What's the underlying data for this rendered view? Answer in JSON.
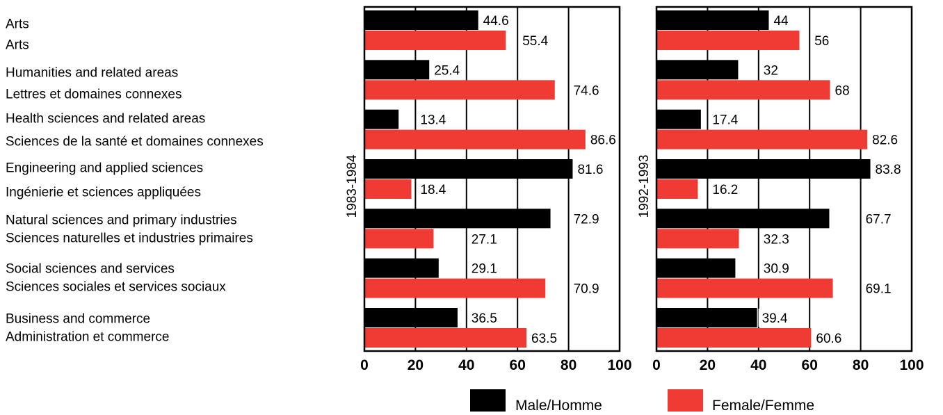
{
  "chart_data": {
    "type": "bar",
    "orientation": "horizontal",
    "categories": [
      [
        "Arts",
        "Arts"
      ],
      [
        "Humanities and related areas",
        "Lettres et domaines connexes"
      ],
      [
        "Health sciences and related areas",
        "Sciences de la santé et domaines connexes"
      ],
      [
        "Engineering and applied sciences",
        "Ingénierie et sciences appliquées"
      ],
      [
        "Natural sciences and primary industries",
        "Sciences naturelles et industries primaires"
      ],
      [
        "Social sciences and services",
        "Sciences sociales et services sociaux"
      ],
      [
        "Business and commerce",
        "Administration et commerce"
      ]
    ],
    "legend": [
      {
        "name": "Male/Homme",
        "color": "#000000"
      },
      {
        "name": "Female/Femme",
        "color": "#ef3b33"
      }
    ],
    "xlim": [
      0,
      100
    ],
    "xticks": [
      "0",
      "20",
      "40",
      "60",
      "80",
      "100"
    ],
    "grid": "vertical",
    "legend_position": "bottom",
    "panels": [
      {
        "label": "1983-1984",
        "series": [
          {
            "name": "Male/Homme",
            "values": [
              44.6,
              25.4,
              13.4,
              81.6,
              72.9,
              29.1,
              36.5
            ],
            "labels": [
              "44.6",
              "25.4",
              "13.4",
              "81.6",
              "72.9",
              "29.1",
              "36.5"
            ]
          },
          {
            "name": "Female/Femme",
            "values": [
              55.4,
              74.6,
              86.6,
              18.4,
              27.1,
              70.9,
              63.5
            ],
            "labels": [
              "55.4",
              "74.6",
              "86.6",
              "18.4",
              "27.1",
              "70.9",
              "63.5"
            ]
          }
        ]
      },
      {
        "label": "1992-1993",
        "series": [
          {
            "name": "Male/Homme",
            "values": [
              44,
              32,
              17.4,
              83.8,
              67.7,
              30.9,
              39.4
            ],
            "labels": [
              "44",
              "32",
              "17.4",
              "83.8",
              "67.7",
              "30.9",
              "39.4"
            ]
          },
          {
            "name": "Female/Femme",
            "values": [
              56,
              68,
              82.6,
              16.2,
              32.3,
              69.1,
              60.6
            ],
            "labels": [
              "56",
              "68",
              "82.6",
              "16.2",
              "32.3",
              "69.1",
              "60.6"
            ]
          }
        ]
      }
    ]
  }
}
